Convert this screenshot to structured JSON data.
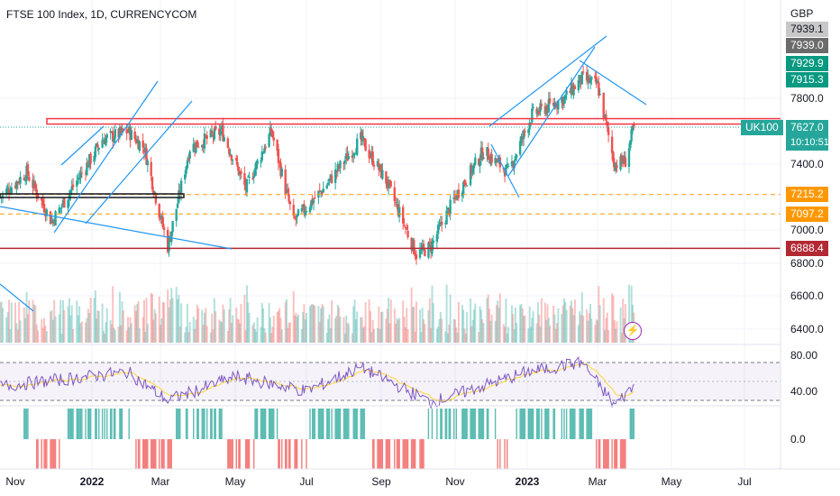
{
  "header": {
    "title": "FTSE 100 Index, 1D, CURRENCYCOM"
  },
  "price_scale": {
    "currency": "GBP",
    "labels": [
      "7800.0",
      "7400.0",
      "7000.0",
      "6800.0",
      "6600.0",
      "6400.0"
    ]
  },
  "tags": {
    "t1": "7939.1",
    "t2": "7939.0",
    "t3": "7929.9",
    "t4": "7915.3",
    "last_price": "7627.0",
    "countdown": "10:10:51",
    "symbol": "UK100",
    "level_1": "7215.2",
    "level_2": "7097.2",
    "level_3": "6888.4"
  },
  "rsi_scale": {
    "labels": [
      "80.00",
      "40.00"
    ]
  },
  "hist_scale": {
    "labels": [
      "0.0"
    ]
  },
  "time_axis": {
    "labels": [
      "Nov",
      "2022",
      "Mar",
      "May",
      "Jul",
      "Sep",
      "Nov",
      "2023",
      "Mar",
      "May",
      "Jul"
    ]
  },
  "icons": {
    "alert": "lightning-bolt-icon"
  },
  "colors": {
    "up": "#26a69a",
    "down": "#ef5350",
    "resistance": "#f23645",
    "trendline": "#2196f3",
    "dashed_level": "#ff9800",
    "support": "#b22833",
    "rsi_line": "#7e57c2",
    "rsi_ma": "#fdd835"
  },
  "chart_data": {
    "type": "candlestick",
    "title": "FTSE 100 Index, 1D, CURRENCYCOM",
    "x_range": [
      "2021-10",
      "2023-07"
    ],
    "y_range": [
      6350,
      7970
    ],
    "last_close": 7627.0,
    "price_path": [
      [
        "2021-10-20",
        7200
      ],
      [
        "2021-11-10",
        7350
      ],
      [
        "2021-11-30",
        7050
      ],
      [
        "2021-12-20",
        7300
      ],
      [
        "2022-01-10",
        7550
      ],
      [
        "2022-02-01",
        7600
      ],
      [
        "2022-02-15",
        7500
      ],
      [
        "2022-03-07",
        6900
      ],
      [
        "2022-03-25",
        7500
      ],
      [
        "2022-04-20",
        7600
      ],
      [
        "2022-05-10",
        7250
      ],
      [
        "2022-06-01",
        7600
      ],
      [
        "2022-06-20",
        7050
      ],
      [
        "2022-07-15",
        7250
      ],
      [
        "2022-08-15",
        7550
      ],
      [
        "2022-09-05",
        7300
      ],
      [
        "2022-09-30",
        6850
      ],
      [
        "2022-10-12",
        6900
      ],
      [
        "2022-11-01",
        7200
      ],
      [
        "2022-11-25",
        7480
      ],
      [
        "2022-12-16",
        7350
      ],
      [
        "2023-01-05",
        7700
      ],
      [
        "2023-02-01",
        7800
      ],
      [
        "2023-02-16",
        7920
      ],
      [
        "2023-03-01",
        7880
      ],
      [
        "2023-03-15",
        7400
      ],
      [
        "2023-03-24",
        7420
      ],
      [
        "2023-03-31",
        7627
      ]
    ],
    "horizontal_levels": [
      {
        "value": 7660,
        "style": "resistance"
      },
      {
        "value": 7215.2,
        "style": "dashed"
      },
      {
        "value": 7097.2,
        "style": "dashed"
      },
      {
        "value": 6888.4,
        "style": "support"
      }
    ],
    "rsi": {
      "levels": [
        70,
        30
      ],
      "path": [
        [
          "2021-10-20",
          45
        ],
        [
          "2022-02-01",
          60
        ],
        [
          "2022-03-07",
          30
        ],
        [
          "2022-05-01",
          55
        ],
        [
          "2022-07-01",
          40
        ],
        [
          "2022-08-15",
          65
        ],
        [
          "2022-10-12",
          28
        ],
        [
          "2023-01-01",
          60
        ],
        [
          "2023-02-16",
          70
        ],
        [
          "2023-03-15",
          25
        ],
        [
          "2023-03-31",
          45
        ]
      ]
    },
    "series": [
      {
        "values_ref": "price_path"
      }
    ]
  }
}
